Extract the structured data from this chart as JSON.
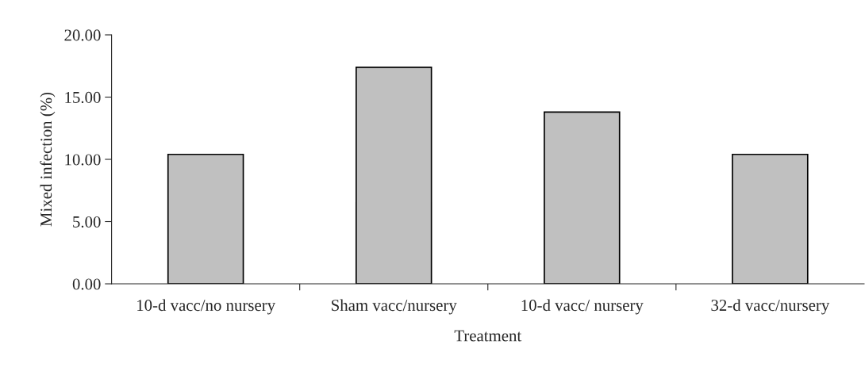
{
  "chart_data": {
    "type": "bar",
    "xlabel": "Treatment",
    "ylabel": "Mixed infection (%)",
    "categories": [
      "10-d vacc/no nursery",
      "Sham vacc/nursery",
      "10-d vacc/ nursery",
      "32-d vacc/nursery"
    ],
    "values": [
      10.4,
      17.4,
      13.8,
      10.4
    ],
    "color": "#c0c0c0",
    "ylim": [
      0,
      20
    ],
    "yticks": [
      {
        "value": 0,
        "label": "0.00"
      },
      {
        "value": 5,
        "label": "5.00"
      },
      {
        "value": 10,
        "label": "10.00"
      },
      {
        "value": 15,
        "label": "15.00"
      },
      {
        "value": 20,
        "label": "20.00"
      }
    ],
    "grid": false,
    "legend": false
  }
}
